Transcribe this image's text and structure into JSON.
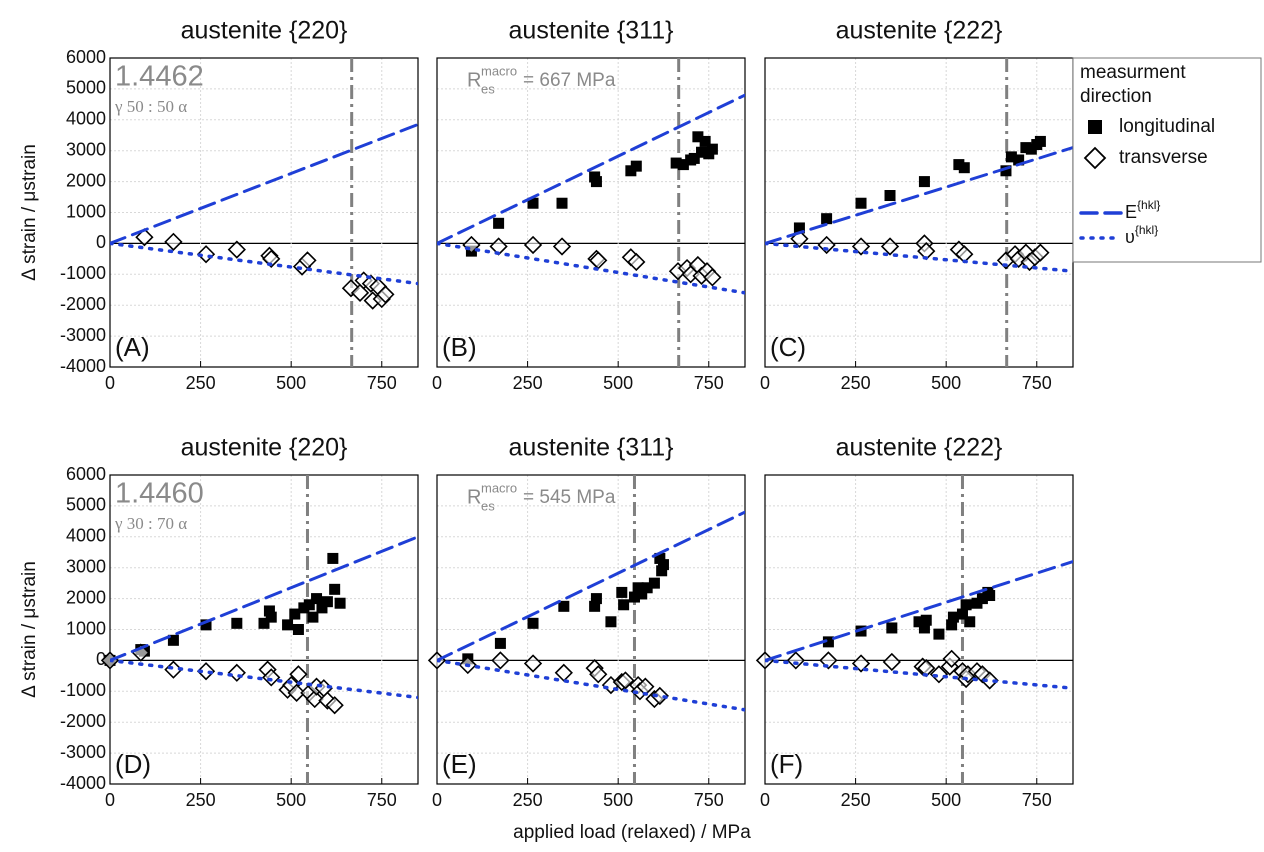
{
  "chart_data": [
    {
      "type": "scatter",
      "title": "austenite {220}",
      "ylabel": "Δ strain / μstrain",
      "ytick_labels": true,
      "label": "1.4462",
      "sublabel": "γ 50 : 50 α",
      "panel_label": "(A)",
      "vline": 667,
      "xlim": [
        0,
        850
      ],
      "ylim": [
        -4000,
        6000
      ],
      "xticks": [
        0,
        250,
        500,
        750
      ],
      "yticks": [
        -4000,
        -3000,
        -2000,
        -1000,
        0,
        1000,
        2000,
        3000,
        4000,
        5000,
        6000
      ],
      "grid": true,
      "series": [
        {
          "marker": "square",
          "color": "#000000",
          "x": [],
          "values": []
        },
        {
          "marker": "diamond",
          "color": "#000000",
          "x": [
            95,
            175,
            265,
            350,
            440,
            445,
            530,
            545,
            665,
            690,
            700,
            720,
            725,
            740,
            750,
            760
          ],
          "values": [
            200,
            50,
            -350,
            -200,
            -400,
            -500,
            -750,
            -550,
            -1450,
            -1600,
            -1200,
            -1300,
            -1850,
            -1400,
            -1800,
            -1650
          ]
        },
        {
          "style": "dashed",
          "color": "#1f3fd6",
          "x": [
            0,
            850
          ],
          "values": [
            0,
            3850
          ]
        },
        {
          "style": "dotted",
          "color": "#1f3fd6",
          "x": [
            0,
            850
          ],
          "values": [
            0,
            -1300
          ]
        }
      ]
    },
    {
      "type": "scatter",
      "title": "austenite {311}",
      "ytick_labels": false,
      "panel_label": "(B)",
      "vline": 667,
      "annotation": {
        "base": "R",
        "sup": "macro",
        "sub": "es",
        "text": "= 667 MPa"
      },
      "xlim": [
        0,
        850
      ],
      "ylim": [
        -4000,
        6000
      ],
      "xticks": [
        0,
        250,
        500,
        750
      ],
      "yticks": [
        -4000,
        -3000,
        -2000,
        -1000,
        0,
        1000,
        2000,
        3000,
        4000,
        5000,
        6000
      ],
      "grid": true,
      "series": [
        {
          "marker": "square",
          "color": "#000000",
          "x": [
            95,
            170,
            265,
            345,
            435,
            440,
            535,
            550,
            660,
            680,
            700,
            710,
            720,
            730,
            740,
            750,
            760
          ],
          "values": [
            -250,
            650,
            1300,
            1300,
            2150,
            2000,
            2350,
            2500,
            2600,
            2550,
            2700,
            2750,
            3450,
            2950,
            3300,
            2900,
            3050
          ]
        },
        {
          "marker": "diamond",
          "color": "#000000",
          "x": [
            95,
            170,
            265,
            345,
            440,
            445,
            535,
            550,
            665,
            690,
            700,
            720,
            730,
            745,
            760
          ],
          "values": [
            -50,
            -100,
            -50,
            -100,
            -500,
            -550,
            -450,
            -600,
            -900,
            -800,
            -1000,
            -700,
            -1050,
            -900,
            -1100
          ]
        },
        {
          "style": "dashed",
          "color": "#1f3fd6",
          "x": [
            0,
            850
          ],
          "values": [
            0,
            4800
          ]
        },
        {
          "style": "dotted",
          "color": "#1f3fd6",
          "x": [
            0,
            850
          ],
          "values": [
            0,
            -1600
          ]
        }
      ]
    },
    {
      "type": "scatter",
      "title": "austenite {222}",
      "ytick_labels": false,
      "panel_label": "(C)",
      "vline": 667,
      "legend_title": "measurment direction",
      "legend": "right",
      "xlim": [
        0,
        850
      ],
      "ylim": [
        -4000,
        6000
      ],
      "xticks": [
        0,
        250,
        500,
        750
      ],
      "yticks": [
        -4000,
        -3000,
        -2000,
        -1000,
        0,
        1000,
        2000,
        3000,
        4000,
        5000,
        6000
      ],
      "grid": true,
      "series": [
        {
          "name": "longitudinal",
          "marker": "square",
          "color": "#000000",
          "x": [
            95,
            170,
            265,
            345,
            440,
            535,
            550,
            665,
            680,
            700,
            720,
            735,
            750,
            760
          ],
          "values": [
            500,
            800,
            1300,
            1550,
            2000,
            2550,
            2450,
            2350,
            2800,
            2700,
            3100,
            3050,
            3200,
            3300
          ]
        },
        {
          "name": "transverse",
          "marker": "diamond",
          "color": "#000000",
          "x": [
            95,
            170,
            265,
            345,
            440,
            445,
            535,
            550,
            665,
            690,
            700,
            720,
            730,
            745,
            760
          ],
          "values": [
            150,
            -50,
            -100,
            -100,
            0,
            -250,
            -200,
            -350,
            -550,
            -350,
            -500,
            -300,
            -600,
            -450,
            -300
          ]
        },
        {
          "name": "E{hkl}",
          "style": "dashed",
          "color": "#1f3fd6",
          "x": [
            0,
            850
          ],
          "values": [
            0,
            3100
          ]
        },
        {
          "name": "υ{hkl}",
          "style": "dotted",
          "color": "#1f3fd6",
          "x": [
            0,
            850
          ],
          "values": [
            0,
            -900
          ]
        }
      ]
    },
    {
      "type": "scatter",
      "title": "austenite {220}",
      "ylabel": "Δ strain / μstrain",
      "ytick_labels": true,
      "label": "1.4460",
      "sublabel": "γ 30 : 70 α",
      "panel_label": "(D)",
      "vline": 545,
      "xlim": [
        0,
        850
      ],
      "ylim": [
        -4000,
        6000
      ],
      "xticks": [
        0,
        250,
        500,
        750
      ],
      "yticks": [
        -4000,
        -3000,
        -2000,
        -1000,
        0,
        1000,
        2000,
        3000,
        4000,
        5000,
        6000
      ],
      "grid": true,
      "series": [
        {
          "marker": "square",
          "color": "#000000",
          "x": [
            0,
            85,
            95,
            175,
            265,
            350,
            425,
            440,
            445,
            490,
            510,
            520,
            535,
            550,
            560,
            570,
            585,
            600,
            615,
            620,
            635
          ],
          "values": [
            0,
            350,
            300,
            650,
            1150,
            1200,
            1200,
            1600,
            1400,
            1150,
            1500,
            1000,
            1700,
            1800,
            1400,
            2000,
            1700,
            1900,
            3300,
            2300,
            1850
          ]
        },
        {
          "marker": "diamond",
          "color": "#000000",
          "x": [
            0,
            85,
            175,
            265,
            350,
            435,
            445,
            490,
            500,
            515,
            520,
            550,
            565,
            570,
            590,
            600,
            620
          ],
          "values": [
            0,
            250,
            -300,
            -350,
            -400,
            -300,
            -550,
            -950,
            -800,
            -1050,
            -450,
            -1050,
            -1250,
            -850,
            -900,
            -1300,
            -1450
          ]
        },
        {
          "style": "dashed",
          "color": "#1f3fd6",
          "x": [
            0,
            850
          ],
          "values": [
            0,
            4000
          ]
        },
        {
          "style": "dotted",
          "color": "#1f3fd6",
          "x": [
            0,
            850
          ],
          "values": [
            0,
            -1200
          ]
        }
      ]
    },
    {
      "type": "scatter",
      "title": "austenite {311}",
      "ytick_labels": false,
      "panel_label": "(E)",
      "vline": 545,
      "xlabel": "applied load (relaxed) / MPa",
      "annotation": {
        "base": "R",
        "sup": "macro",
        "sub": "es",
        "text": "= 545 MPa"
      },
      "xlim": [
        0,
        850
      ],
      "ylim": [
        -4000,
        6000
      ],
      "xticks": [
        0,
        250,
        500,
        750
      ],
      "yticks": [
        -4000,
        -3000,
        -2000,
        -1000,
        0,
        1000,
        2000,
        3000,
        4000,
        5000,
        6000
      ],
      "grid": true,
      "series": [
        {
          "marker": "square",
          "color": "#000000",
          "x": [
            85,
            175,
            265,
            350,
            435,
            440,
            480,
            510,
            515,
            545,
            555,
            565,
            580,
            600,
            615,
            625,
            620
          ],
          "values": [
            50,
            550,
            1200,
            1750,
            1750,
            2000,
            1250,
            2200,
            1800,
            2050,
            2350,
            2150,
            2350,
            2500,
            3300,
            3100,
            2900
          ]
        },
        {
          "marker": "diamond",
          "color": "#000000",
          "x": [
            0,
            85,
            175,
            265,
            350,
            435,
            445,
            480,
            510,
            520,
            555,
            560,
            600,
            615,
            575
          ],
          "values": [
            0,
            -150,
            0,
            -100,
            -400,
            -250,
            -450,
            -800,
            -700,
            -650,
            -800,
            -1000,
            -1250,
            -1150,
            -850
          ]
        },
        {
          "style": "dashed",
          "color": "#1f3fd6",
          "x": [
            0,
            850
          ],
          "values": [
            0,
            4800
          ]
        },
        {
          "style": "dotted",
          "color": "#1f3fd6",
          "x": [
            0,
            850
          ],
          "values": [
            0,
            -1600
          ]
        }
      ]
    },
    {
      "type": "scatter",
      "title": "austenite {222}",
      "ytick_labels": false,
      "panel_label": "(F)",
      "vline": 545,
      "xlim": [
        0,
        850
      ],
      "ylim": [
        -4000,
        6000
      ],
      "xticks": [
        0,
        250,
        500,
        750
      ],
      "yticks": [
        -4000,
        -3000,
        -2000,
        -1000,
        0,
        1000,
        2000,
        3000,
        4000,
        5000,
        6000
      ],
      "grid": true,
      "series": [
        {
          "marker": "square",
          "color": "#000000",
          "x": [
            175,
            265,
            350,
            425,
            440,
            445,
            480,
            515,
            520,
            545,
            555,
            565,
            585,
            600,
            615,
            620
          ],
          "values": [
            600,
            950,
            1050,
            1250,
            1050,
            1300,
            850,
            1150,
            1400,
            1500,
            1800,
            1250,
            1850,
            2000,
            2200,
            2100
          ]
        },
        {
          "marker": "diamond",
          "color": "#000000",
          "x": [
            0,
            85,
            175,
            265,
            350,
            435,
            445,
            480,
            510,
            515,
            545,
            555,
            560,
            585,
            600,
            620
          ],
          "values": [
            0,
            0,
            0,
            -100,
            -50,
            -200,
            -250,
            -450,
            -200,
            50,
            -350,
            -600,
            -450,
            -350,
            -450,
            -650
          ]
        },
        {
          "style": "dashed",
          "color": "#1f3fd6",
          "x": [
            0,
            850
          ],
          "values": [
            0,
            3200
          ]
        },
        {
          "style": "dotted",
          "color": "#1f3fd6",
          "x": [
            0,
            850
          ],
          "values": [
            0,
            -900
          ]
        }
      ]
    }
  ]
}
